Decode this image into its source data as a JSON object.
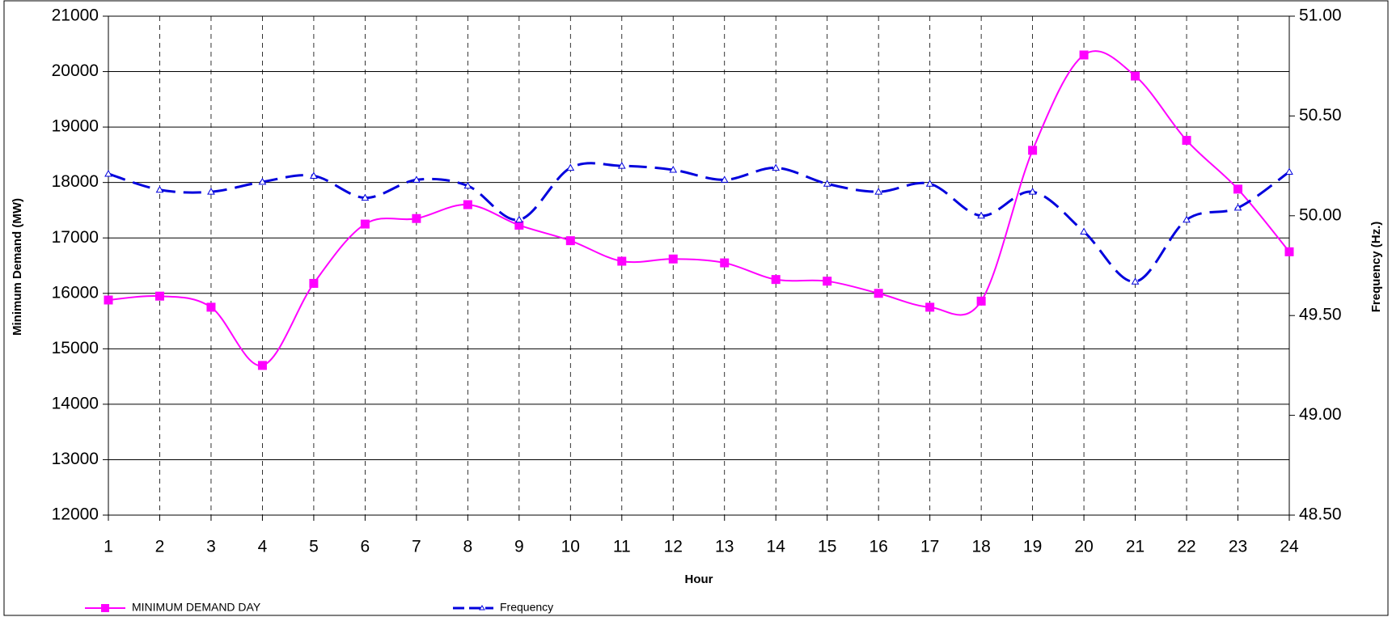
{
  "chart_data": {
    "type": "line",
    "x_label": "Hour",
    "y_label": "Minimum Demand (MW)",
    "y2_label": "Frequency (Hz.)",
    "categories": [
      "1",
      "2",
      "3",
      "4",
      "5",
      "6",
      "7",
      "8",
      "9",
      "10",
      "11",
      "12",
      "13",
      "14",
      "15",
      "16",
      "17",
      "18",
      "19",
      "20",
      "21",
      "22",
      "23",
      "24"
    ],
    "series": [
      {
        "name": "MINIMUM  DEMAND DAY",
        "color": "#ff00ff",
        "marker": "square",
        "dashed": false,
        "values": [
          15880,
          15950,
          15750,
          14700,
          16180,
          17250,
          17350,
          17600,
          17230,
          16950,
          16580,
          16620,
          16550,
          16250,
          16220,
          16000,
          15750,
          15860,
          18580,
          20300,
          19920,
          18760,
          17880,
          16750
        ]
      },
      {
        "name": "Frequency",
        "color": "#0000dd",
        "marker": "triangle",
        "dashed": true,
        "axis": "y2",
        "values": [
          50.21,
          50.13,
          50.12,
          50.17,
          50.2,
          50.09,
          50.18,
          50.15,
          49.98,
          50.24,
          50.25,
          50.23,
          50.18,
          50.24,
          50.16,
          50.12,
          50.16,
          50.0,
          50.12,
          49.92,
          49.67,
          49.98,
          50.04,
          50.22
        ]
      }
    ],
    "ylim": [
      12000,
      21000
    ],
    "yticks": [
      12000,
      13000,
      14000,
      15000,
      16000,
      17000,
      18000,
      19000,
      20000,
      21000
    ],
    "y2lim": [
      48.5,
      51
    ],
    "y2ticks": [
      {
        "value": 48.5,
        "label": "48.50"
      },
      {
        "value": 49,
        "label": "49.00"
      },
      {
        "value": 49.5,
        "label": "49.50"
      },
      {
        "value": 50,
        "label": "50.00"
      },
      {
        "value": 50.5,
        "label": "50.50"
      },
      {
        "value": 51,
        "label": "51.00"
      }
    ],
    "grid": true
  }
}
